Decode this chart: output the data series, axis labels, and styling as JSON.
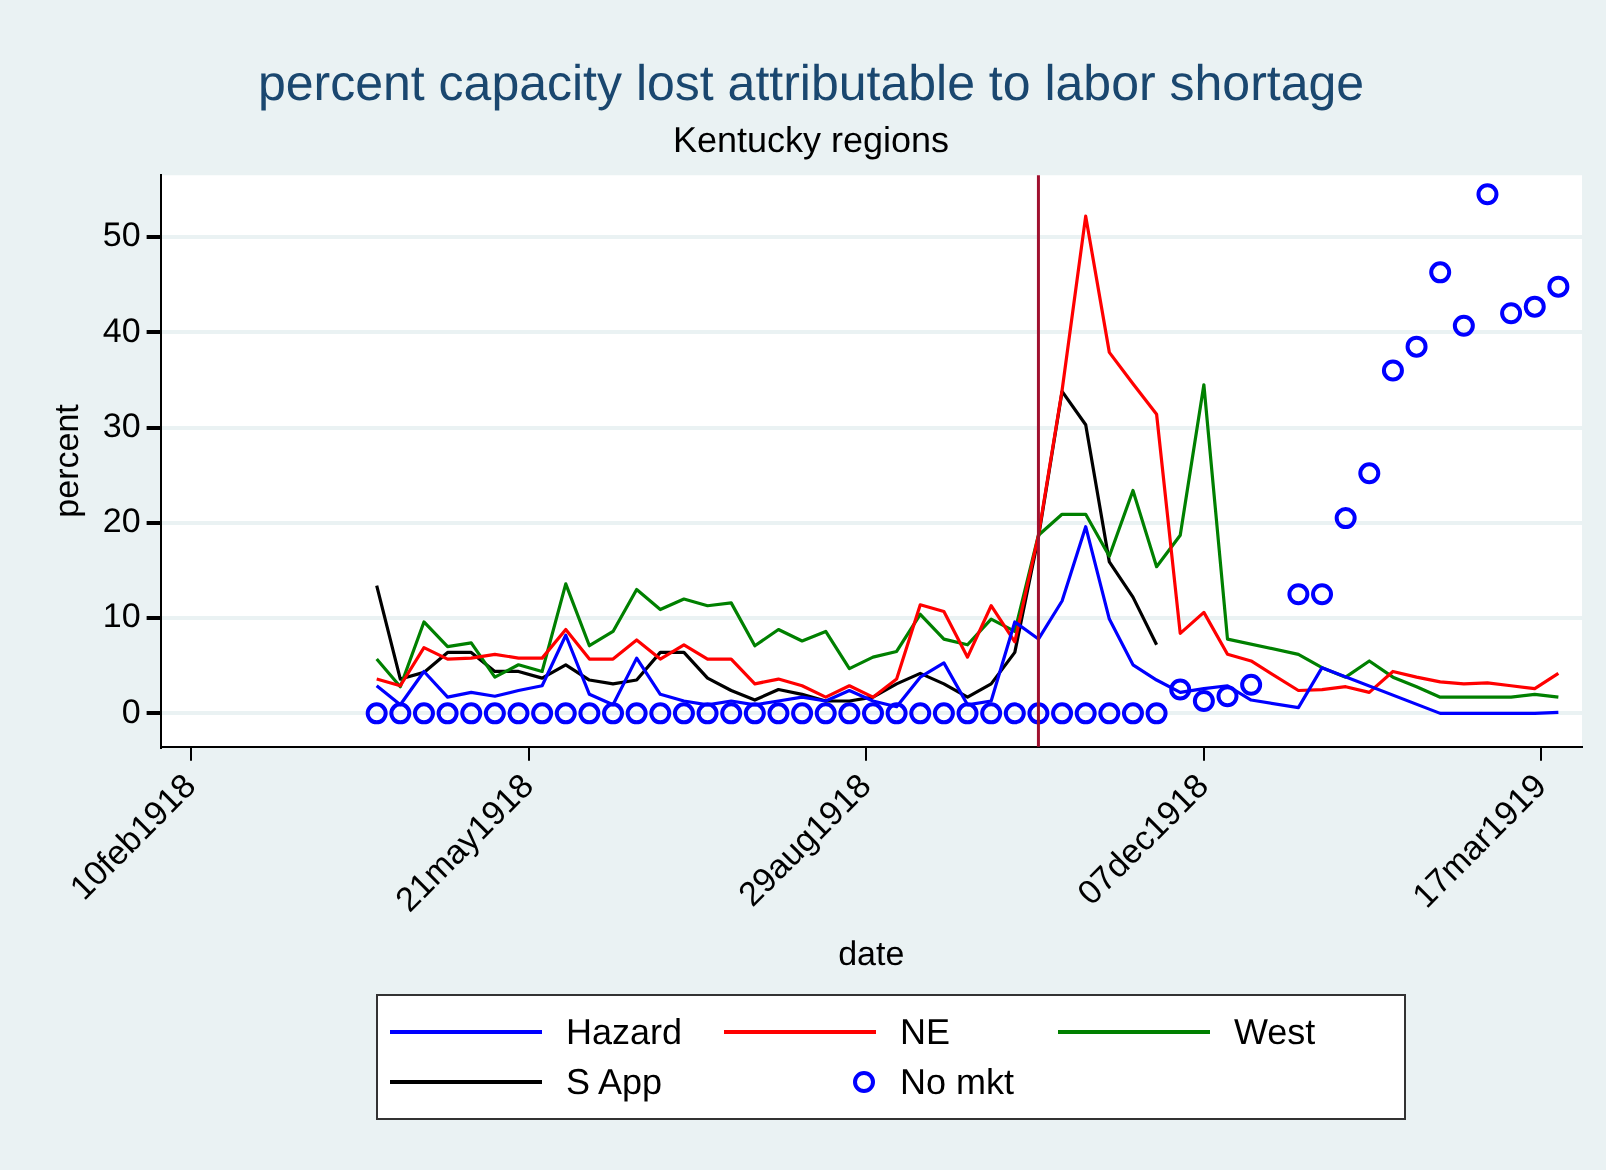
{
  "chart_data": {
    "type": "line",
    "title": "percent capacity lost attributable to labor shortage",
    "subtitle": "Kentucky regions",
    "xlabel": "date",
    "ylabel": "percent",
    "x": [
      "1918-04-06",
      "1918-04-13",
      "1918-04-20",
      "1918-04-27",
      "1918-05-04",
      "1918-05-11",
      "1918-05-18",
      "1918-05-25",
      "1918-06-01",
      "1918-06-08",
      "1918-06-15",
      "1918-06-22",
      "1918-06-29",
      "1918-07-06",
      "1918-07-13",
      "1918-07-20",
      "1918-07-27",
      "1918-08-03",
      "1918-08-10",
      "1918-08-17",
      "1918-08-24",
      "1918-08-31",
      "1918-09-07",
      "1918-09-14",
      "1918-09-21",
      "1918-09-28",
      "1918-10-05",
      "1918-10-12",
      "1918-10-19",
      "1918-10-26",
      "1918-11-02",
      "1918-11-09",
      "1918-11-16",
      "1918-11-23",
      "1918-11-30",
      "1918-12-07",
      "1918-12-14",
      "1918-12-21",
      "1918-12-28",
      "1919-01-04",
      "1919-01-11",
      "1919-01-18",
      "1919-01-25",
      "1919-02-01",
      "1919-02-08",
      "1919-02-15",
      "1919-02-22",
      "1919-03-01",
      "1919-03-08",
      "1919-03-15",
      "1919-03-22"
    ],
    "series": [
      {
        "name": "Hazard",
        "type": "line",
        "marker": "none",
        "color": "#0000ff",
        "values": [
          2.9,
          0.9,
          4.4,
          1.7,
          2.2,
          1.8,
          2.4,
          2.9,
          8.2,
          2.0,
          0.9,
          5.8,
          2.0,
          1.3,
          0.9,
          1.3,
          0.9,
          1.3,
          1.7,
          1.3,
          2.4,
          1.3,
          0.7,
          3.8,
          5.3,
          0.9,
          1.3,
          9.6,
          7.8,
          11.8,
          19.6,
          9.9,
          5.1,
          3.5,
          2.2,
          2.6,
          2.9,
          1.4,
          null,
          0.6,
          4.8,
          null,
          null,
          null,
          null,
          0,
          0,
          0,
          0,
          0,
          0.1
        ]
      },
      {
        "name": "NE",
        "type": "line",
        "marker": "none",
        "color": "#ff0000",
        "values": [
          3.6,
          2.9,
          6.9,
          5.7,
          5.8,
          6.2,
          5.8,
          5.8,
          8.8,
          5.7,
          5.7,
          7.7,
          5.7,
          7.2,
          5.7,
          5.7,
          3.1,
          3.6,
          2.9,
          1.7,
          2.9,
          1.7,
          3.6,
          11.4,
          10.7,
          5.9,
          11.3,
          7.5,
          18.7,
          33.9,
          52.2,
          37.9,
          34.6,
          31.4,
          8.4,
          10.6,
          6.2,
          5.5,
          null,
          2.4,
          2.5,
          2.8,
          2.2,
          4.4,
          3.8,
          3.3,
          3.1,
          3.2,
          2.9,
          2.6,
          4.2
        ]
      },
      {
        "name": "West",
        "type": "line",
        "marker": "none",
        "color": "#008000",
        "values": [
          5.7,
          2.8,
          9.6,
          7.0,
          7.4,
          3.8,
          5.1,
          4.4,
          13.6,
          7.1,
          8.6,
          13.0,
          10.9,
          12.0,
          11.3,
          11.6,
          7.1,
          8.8,
          7.6,
          8.6,
          4.7,
          5.9,
          6.5,
          10.4,
          7.8,
          7.2,
          9.9,
          8.6,
          18.7,
          20.9,
          20.9,
          16.5,
          23.4,
          15.4,
          18.7,
          34.5,
          7.8,
          null,
          null,
          6.2,
          4.8,
          3.8,
          5.5,
          3.8,
          2.8,
          1.7,
          1.7,
          1.7,
          1.7,
          2.0,
          1.7
        ]
      },
      {
        "name": "S App",
        "type": "line",
        "marker": "none",
        "color": "#000000",
        "values": [
          13.4,
          3.6,
          4.3,
          6.4,
          6.4,
          4.4,
          4.4,
          3.7,
          5.1,
          3.5,
          3.1,
          3.5,
          6.4,
          6.4,
          3.7,
          2.4,
          1.4,
          2.5,
          2.0,
          1.3,
          1.3,
          1.7,
          3.1,
          4.2,
          3.1,
          1.7,
          3.1,
          6.4,
          18.5,
          33.8,
          30.3,
          15.9,
          12.2,
          7.2,
          null,
          null,
          null,
          null,
          null,
          null,
          null,
          null,
          null,
          null,
          null,
          null,
          null,
          null,
          null,
          null,
          null
        ]
      },
      {
        "name": "No mkt",
        "type": "scatter",
        "marker": "circle",
        "color": "#0000ff",
        "values": [
          0,
          0,
          0,
          0,
          0,
          0,
          0,
          0,
          0,
          0,
          0,
          0,
          0,
          0,
          0,
          0,
          0,
          0,
          0,
          0,
          0,
          0,
          0,
          0,
          0,
          0,
          0,
          0,
          0,
          0,
          0,
          0,
          0,
          0,
          2.5,
          1.3,
          1.8,
          3.0,
          null,
          12.5,
          12.5,
          20.5,
          25.2,
          36,
          38.5,
          46.3,
          40.7,
          54.5,
          42,
          42.7,
          44.8
        ]
      }
    ],
    "xlim": [
      "1918-02-01",
      "1919-03-29"
    ],
    "xticks": [
      {
        "value": "1918-02-10",
        "label": "10feb1918"
      },
      {
        "value": "1918-05-21",
        "label": "21may1918"
      },
      {
        "value": "1918-08-29",
        "label": "29aug1918"
      },
      {
        "value": "1918-12-07",
        "label": "07dec1918"
      },
      {
        "value": "1919-03-17",
        "label": "17mar1919"
      }
    ],
    "ylim": [
      -3.5,
      56.5
    ],
    "yticks": [
      0,
      10,
      20,
      30,
      40,
      50
    ],
    "ref_lines": [
      {
        "axis": "x",
        "value": "1918-10-19",
        "color": "#a0102e"
      }
    ],
    "grid": "y",
    "legend": "bottom"
  }
}
